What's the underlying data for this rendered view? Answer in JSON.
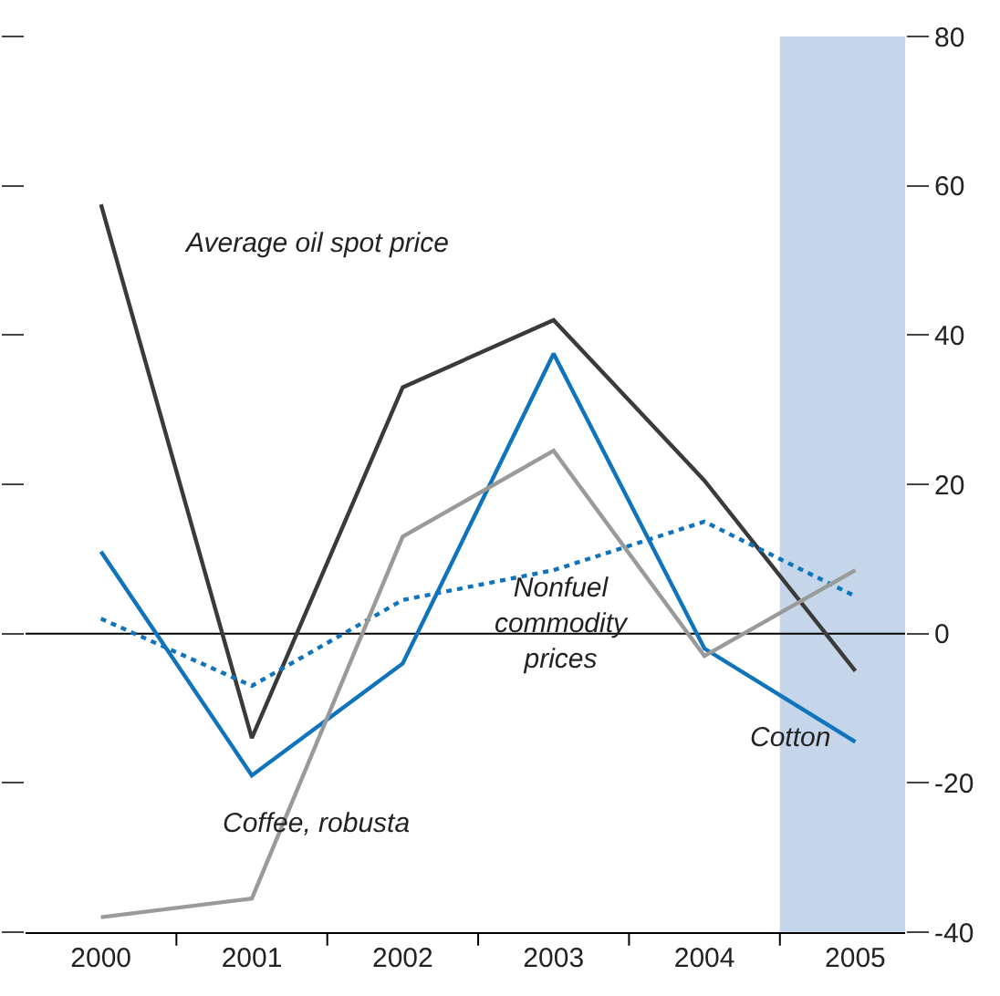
{
  "chart_data": {
    "type": "line",
    "x": [
      2000,
      2001,
      2002,
      2003,
      2004,
      2005
    ],
    "series": [
      {
        "name": "Average oil spot price",
        "color": "#3a3a3a",
        "values": [
          57.5,
          -14,
          33,
          42,
          20.5,
          -5
        ]
      },
      {
        "name": "Cotton",
        "color": "#0f74bb",
        "values": [
          11,
          -19,
          -4,
          37.5,
          -2,
          -14.5
        ]
      },
      {
        "name": "Nonfuel\ncommodity\nprices",
        "color": "#0f74bb",
        "line_style": "dotted",
        "values": [
          2,
          -7,
          4.5,
          8.5,
          15,
          5
        ]
      },
      {
        "name": "Coffee, robusta",
        "color": "#9a9a9a",
        "values": [
          -38,
          -35.5,
          13,
          24.5,
          -3,
          8.5
        ]
      }
    ],
    "xlim": [
      1999.5,
      2005.33
    ],
    "xticks": [
      {
        "value": 2000,
        "label": "2000"
      },
      {
        "value": 2001,
        "label": "2001"
      },
      {
        "value": 2002,
        "label": "2002"
      },
      {
        "value": 2003,
        "label": "2003"
      },
      {
        "value": 2004,
        "label": "2004"
      },
      {
        "value": 2005,
        "label": "2005"
      }
    ],
    "ylim": [
      -40,
      80
    ],
    "yticks": [
      -40,
      -20,
      0,
      20,
      40,
      60,
      80
    ],
    "ref_lines": [
      {
        "axis": "y",
        "value": 0,
        "color": "#000000"
      }
    ],
    "bands": [
      {
        "axis": "x",
        "from": 2004.5,
        "to": 2005.33,
        "color": "#c5d5ea"
      }
    ],
    "grid": false,
    "legend": false,
    "marker": "none",
    "line_style": "solid"
  }
}
